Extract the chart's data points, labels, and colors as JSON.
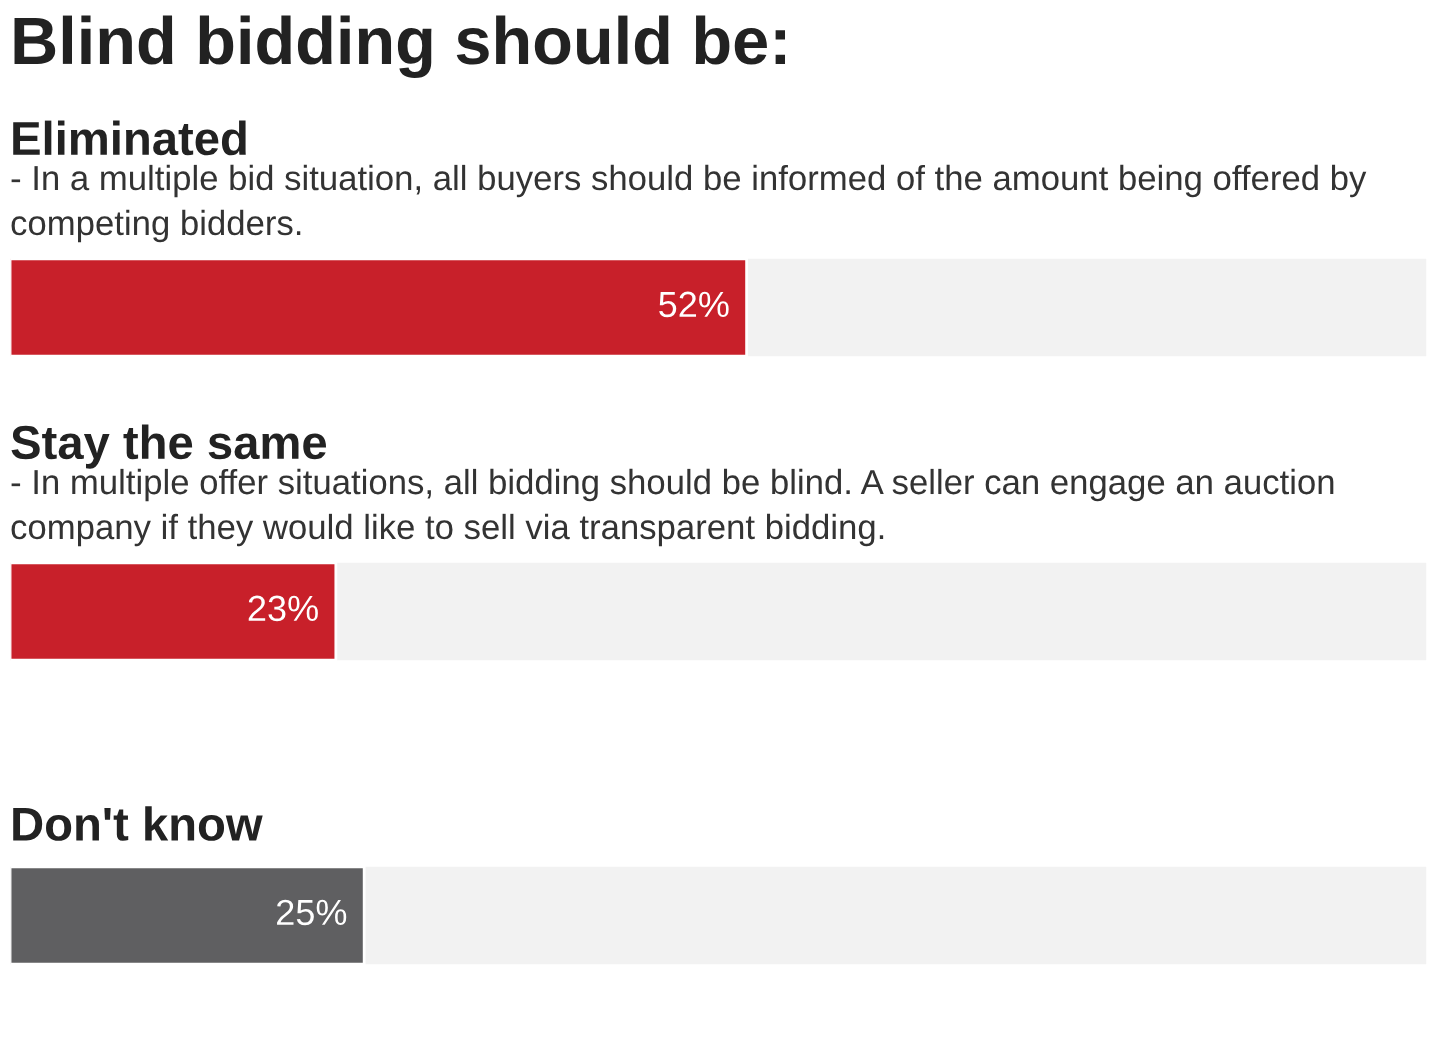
{
  "chart_data": {
    "type": "bar",
    "orientation": "horizontal",
    "title": "Blind bidding should be:",
    "categories": [
      "Eliminated",
      "Stay the same",
      "Don't know"
    ],
    "annotations": [
      "- In a multiple bid situation, all buyers should be informed of the amount being offered by competing bidders.",
      "- In multiple offer situations, all bidding should be blind. A seller can engage an auction company if they would like to sell via transparent bidding."
    ],
    "values": [
      52,
      23,
      25
    ],
    "colors": [
      "#c8202a",
      "#c8202a",
      "#5f5f61"
    ],
    "value_labels": [
      "52%",
      "23%",
      "25%"
    ],
    "xlim": [
      0,
      100
    ]
  }
}
